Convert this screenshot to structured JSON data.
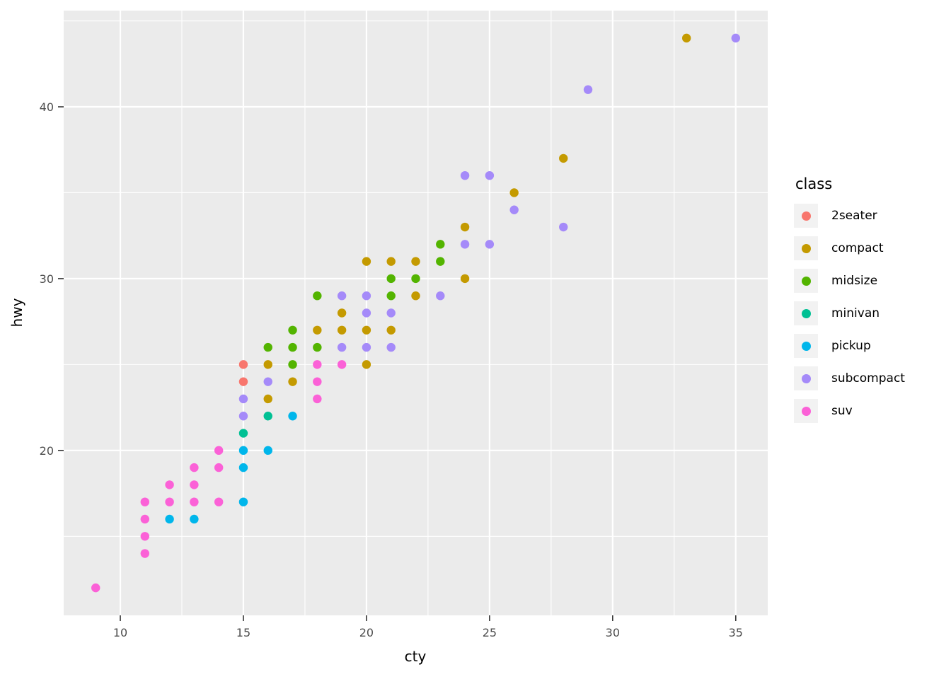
{
  "figure": {
    "background": "#FFFFFF",
    "panel_background": "#EBEBEB",
    "gridline_color": "#FFFFFF",
    "tick_label_color": "#4D4D4D",
    "tick_mark_color": "#333333"
  },
  "chart_data": {
    "type": "scatter",
    "title": "",
    "xlabel": "cty",
    "ylabel": "hwy",
    "legend_title": "class",
    "legend_position": "right",
    "grid": true,
    "xlim": [
      7.7,
      36.3
    ],
    "ylim": [
      10.4,
      45.6
    ],
    "x_ticks": [
      10,
      15,
      20,
      25,
      30,
      35
    ],
    "y_ticks": [
      20,
      30,
      40
    ],
    "x_minor_ticks": [
      12.5,
      17.5,
      22.5,
      27.5,
      32.5
    ],
    "y_minor_ticks": [
      15,
      25,
      35,
      45
    ],
    "panel_background": "#EBEBEB",
    "series": [
      {
        "name": "2seater",
        "color": "#F8766D",
        "points": [
          [
            15,
            24
          ],
          [
            15,
            25
          ]
        ]
      },
      {
        "name": "compact",
        "color": "#C49A00",
        "points": [
          [
            16,
            23
          ],
          [
            16,
            25
          ],
          [
            17,
            24
          ],
          [
            18,
            27
          ],
          [
            19,
            27
          ],
          [
            19,
            28
          ],
          [
            20,
            25
          ],
          [
            20,
            27
          ],
          [
            20,
            31
          ],
          [
            21,
            27
          ],
          [
            21,
            31
          ],
          [
            22,
            29
          ],
          [
            22,
            31
          ],
          [
            24,
            30
          ],
          [
            24,
            33
          ],
          [
            26,
            35
          ],
          [
            28,
            37
          ],
          [
            33,
            44
          ]
        ]
      },
      {
        "name": "midsize",
        "color": "#53B400",
        "points": [
          [
            16,
            26
          ],
          [
            17,
            25
          ],
          [
            17,
            26
          ],
          [
            17,
            27
          ],
          [
            18,
            26
          ],
          [
            18,
            29
          ],
          [
            21,
            29
          ],
          [
            21,
            30
          ],
          [
            22,
            30
          ],
          [
            23,
            31
          ],
          [
            23,
            32
          ]
        ]
      },
      {
        "name": "minivan",
        "color": "#00C094",
        "points": [
          [
            15,
            21
          ],
          [
            16,
            22
          ]
        ]
      },
      {
        "name": "pickup",
        "color": "#00B6EB",
        "points": [
          [
            12,
            16
          ],
          [
            13,
            16
          ],
          [
            15,
            17
          ],
          [
            15,
            19
          ],
          [
            15,
            20
          ],
          [
            16,
            20
          ],
          [
            17,
            22
          ]
        ]
      },
      {
        "name": "subcompact",
        "color": "#A58AF9",
        "points": [
          [
            15,
            22
          ],
          [
            15,
            23
          ],
          [
            16,
            24
          ],
          [
            19,
            26
          ],
          [
            19,
            29
          ],
          [
            20,
            26
          ],
          [
            20,
            28
          ],
          [
            20,
            29
          ],
          [
            21,
            26
          ],
          [
            21,
            28
          ],
          [
            23,
            29
          ],
          [
            24,
            32
          ],
          [
            24,
            36
          ],
          [
            25,
            32
          ],
          [
            25,
            36
          ],
          [
            26,
            34
          ],
          [
            28,
            33
          ],
          [
            29,
            41
          ],
          [
            35,
            44
          ]
        ]
      },
      {
        "name": "suv",
        "color": "#FB61D7",
        "points": [
          [
            9,
            12
          ],
          [
            11,
            14
          ],
          [
            11,
            15
          ],
          [
            11,
            16
          ],
          [
            11,
            17
          ],
          [
            12,
            17
          ],
          [
            12,
            18
          ],
          [
            13,
            17
          ],
          [
            13,
            18
          ],
          [
            13,
            19
          ],
          [
            14,
            17
          ],
          [
            14,
            19
          ],
          [
            14,
            20
          ],
          [
            18,
            23
          ],
          [
            18,
            24
          ],
          [
            18,
            25
          ],
          [
            19,
            25
          ]
        ]
      }
    ]
  }
}
